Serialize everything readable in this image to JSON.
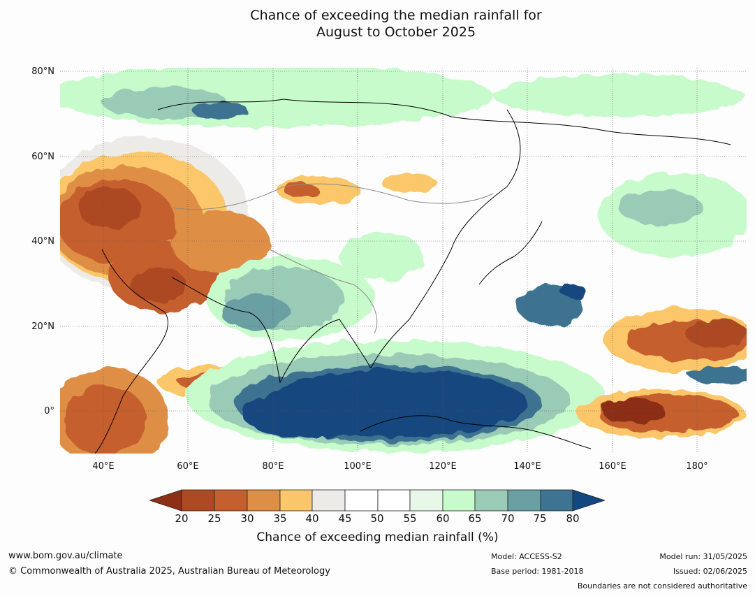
{
  "title": {
    "line1": "Chance of exceeding the median rainfall for",
    "line2": "August to October 2025"
  },
  "map": {
    "lat_labels": [
      "80°N",
      "60°N",
      "40°N",
      "20°N",
      "0°"
    ],
    "lon_labels": [
      "40°E",
      "60°E",
      "80°E",
      "100°E",
      "120°E",
      "140°E",
      "160°E",
      "180°"
    ],
    "colors": {
      "c15": "#8c2f17",
      "c20": "#ad4a23",
      "c25": "#c65f2e",
      "c30": "#df8f45",
      "c35": "#fbc76a",
      "c40": "#ecebe7",
      "c45": "#ffffff",
      "c50": "#ffffff",
      "c55": "#e8f7e8",
      "c60": "#c7fbcb",
      "c65": "#99cbb7",
      "c70": "#6a9fa4",
      "c75": "#3e7391",
      "c80": "#12477f"
    }
  },
  "colorbar": {
    "label": "Chance of exceeding median rainfall (%)",
    "ticks": [
      "20",
      "25",
      "30",
      "35",
      "40",
      "45",
      "50",
      "55",
      "60",
      "65",
      "70",
      "75",
      "80"
    ]
  },
  "footer": {
    "website": "www.bom.gov.au/climate",
    "copyright": "© Commonwealth of Australia 2025, Australian Bureau of Meteorology",
    "model": "Model: ACCESS-S2",
    "base_period": "Base period: 1981-2018",
    "model_run": "Model run: 31/05/2025",
    "issued": "Issued: 02/06/2025",
    "disclaimer": "Boundaries are not considered authoritative"
  }
}
